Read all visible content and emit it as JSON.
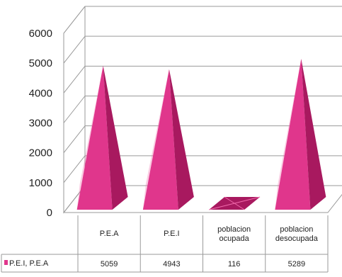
{
  "chart_data": {
    "type": "bar",
    "bar_shape": "3d-pyramid",
    "categories": [
      "P.E.A",
      "P.E.I",
      "poblacion ocupada",
      "poblacion desocupada"
    ],
    "series": [
      {
        "name": "P.E.I, P.E.A",
        "values": [
          5059,
          4943,
          116,
          5289
        ],
        "color": "#e0368c"
      }
    ],
    "ylim": [
      0,
      6000
    ],
    "yticks": [
      "0",
      "1000",
      "2000",
      "3000",
      "4000",
      "5000",
      "6000"
    ],
    "grid": true,
    "legend": "data-table-left",
    "data_table": true,
    "title": "",
    "xlabel": "",
    "ylabel": ""
  },
  "colors": {
    "bar_front": "#e0368c",
    "bar_side": "#a8195f",
    "bar_highlight": "#f26aac",
    "grid": "#9a9a9a"
  }
}
